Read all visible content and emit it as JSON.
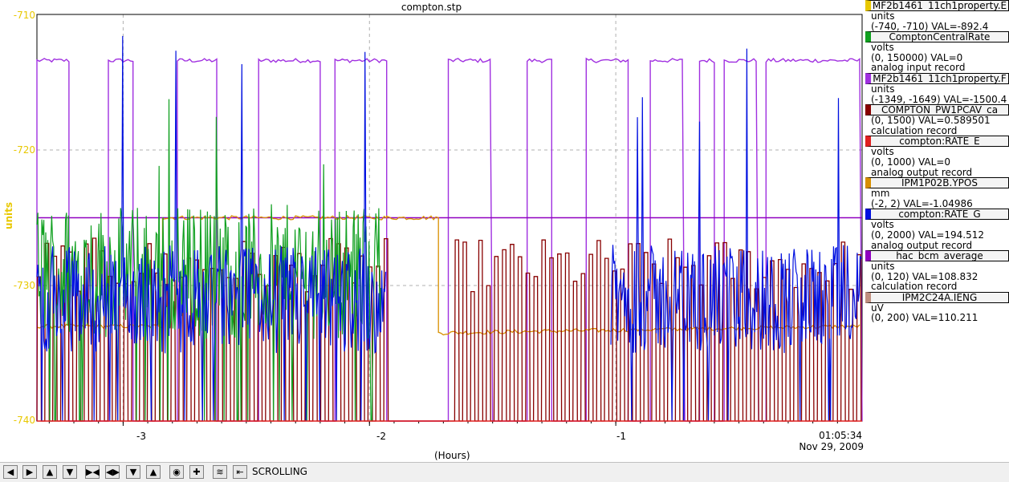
{
  "window_title": "compton.stp",
  "y_axis_label": "units",
  "y_ticks": [
    "-710",
    "-720",
    "-730",
    "-740"
  ],
  "x_ticks": [
    "-3",
    "-2",
    "-1"
  ],
  "x_axis_title": "(Hours)",
  "current_time": "01:05:34",
  "current_date": "Nov 29, 2009",
  "legend": [
    {
      "name": "MF2b1461_11ch1property.E",
      "color": "#e8c800",
      "lines": [
        "units",
        "(-740, -710) VAL=-892.4"
      ]
    },
    {
      "name": "ComptonCentralRate",
      "color": "#10a020",
      "lines": [
        "volts",
        "(0, 150000) VAL=0",
        "analog input record"
      ]
    },
    {
      "name": "MF2b1461_11ch1property.F",
      "color": "#a030e0",
      "lines": [
        "units",
        "(-1349, -1649) VAL=-1500.4"
      ]
    },
    {
      "name": "COMPTON_PW1PCAV_ca",
      "color": "#880000",
      "lines": [
        "(0, 1500) VAL=0.589501",
        "calculation record"
      ]
    },
    {
      "name": "compton:RATE_E",
      "color": "#e02020",
      "lines": [
        "volts",
        "(0, 1000) VAL=0",
        "analog output record"
      ]
    },
    {
      "name": "IPM1P02B.YPOS",
      "color": "#d89000",
      "lines": [
        "mm",
        "(-2, 2) VAL=-1.04986"
      ]
    },
    {
      "name": "compton:RATE_G",
      "color": "#0010e0",
      "lines": [
        "volts",
        "(0, 2000) VAL=194.512",
        "analog output record"
      ]
    },
    {
      "name": "hac_bcm_average",
      "color": "#9000c0",
      "lines": [
        "units",
        "(0, 120) VAL=108.832",
        "calculation record"
      ]
    },
    {
      "name": "IPM2C24A.IENG",
      "color": "#c09080",
      "lines": [
        "uV",
        "(0, 200) VAL=110.211"
      ]
    }
  ],
  "toolbar": {
    "buttons": [
      "pan-left-icon",
      "pan-right-icon",
      "pan-up-icon",
      "pan-down-icon",
      "zoom-in-x-icon",
      "zoom-out-x-icon",
      "zoom-in-y-icon",
      "zoom-out-y-icon",
      "zoom-auto-icon",
      "zoom-reset-icon",
      "history-icon",
      "undo-icon"
    ],
    "mode_label": "SCROLLING"
  },
  "chart_data": {
    "type": "line",
    "title": "compton.stp",
    "xlabel": "(Hours)",
    "ylabel": "units",
    "xlim": [
      -3.35,
      0
    ],
    "ylim": [
      -740,
      -710
    ],
    "grid": true,
    "series": [
      {
        "name": "MF2b1461_11ch1property.F",
        "color": "#a030e0",
        "style": "pulse_high",
        "high": -713.4,
        "low": -740,
        "segments": [
          [
            -3.35,
            -3.22
          ],
          [
            -3.06,
            -2.96
          ],
          [
            -2.78,
            -2.62
          ],
          [
            -2.45,
            -2.2
          ],
          [
            -2.14,
            -1.93
          ],
          [
            -1.68,
            -1.5
          ],
          [
            -1.36,
            -1.26
          ],
          [
            -1.12,
            -0.95
          ],
          [
            -0.86,
            -0.72
          ],
          [
            -0.66,
            -0.6
          ],
          [
            -0.56,
            -0.42
          ],
          [
            -0.39,
            0
          ]
        ]
      },
      {
        "name": "hac_bcm_average",
        "color": "#9000c0",
        "style": "flat",
        "x": [
          -3.35,
          0
        ],
        "y": [
          -725.0,
          -725.0
        ]
      },
      {
        "name": "IPM1P02B.YPOS",
        "color": "#d89000",
        "style": "noise",
        "x": [
          -3.35,
          -2.84,
          -2.84,
          -1.93,
          -1.93,
          -1.72,
          -1.72,
          0
        ],
        "y": [
          -733.0,
          -733.0,
          -725.0,
          -725.0,
          -725.0,
          -725.0,
          -733.5,
          -733.0
        ]
      },
      {
        "name": "COMPTON_PW1PCAV_ca",
        "color": "#880000",
        "style": "pulse_train",
        "x_range": [
          -3.35,
          0
        ],
        "gap": [
          -1.93,
          -1.67
        ],
        "high": -728.5,
        "low": -740
      },
      {
        "name": "ComptonCentralRate",
        "color": "#10a020",
        "style": "noise_pulse",
        "x_range": [
          -3.35,
          -1.95
        ],
        "center": -729.0,
        "spread": 5
      },
      {
        "name": "compton:RATE_G",
        "color": "#0010e0",
        "style": "noise_pulse",
        "x_range": [
          -3.35,
          -1.93
        ],
        "x_range2": [
          -1.02,
          0
        ],
        "center": -731.0,
        "spread": 4
      },
      {
        "name": "compton:RATE_E",
        "color": "#e02020",
        "style": "flat",
        "x": [
          -3.35,
          0
        ],
        "y": [
          -740,
          -740
        ]
      }
    ]
  }
}
